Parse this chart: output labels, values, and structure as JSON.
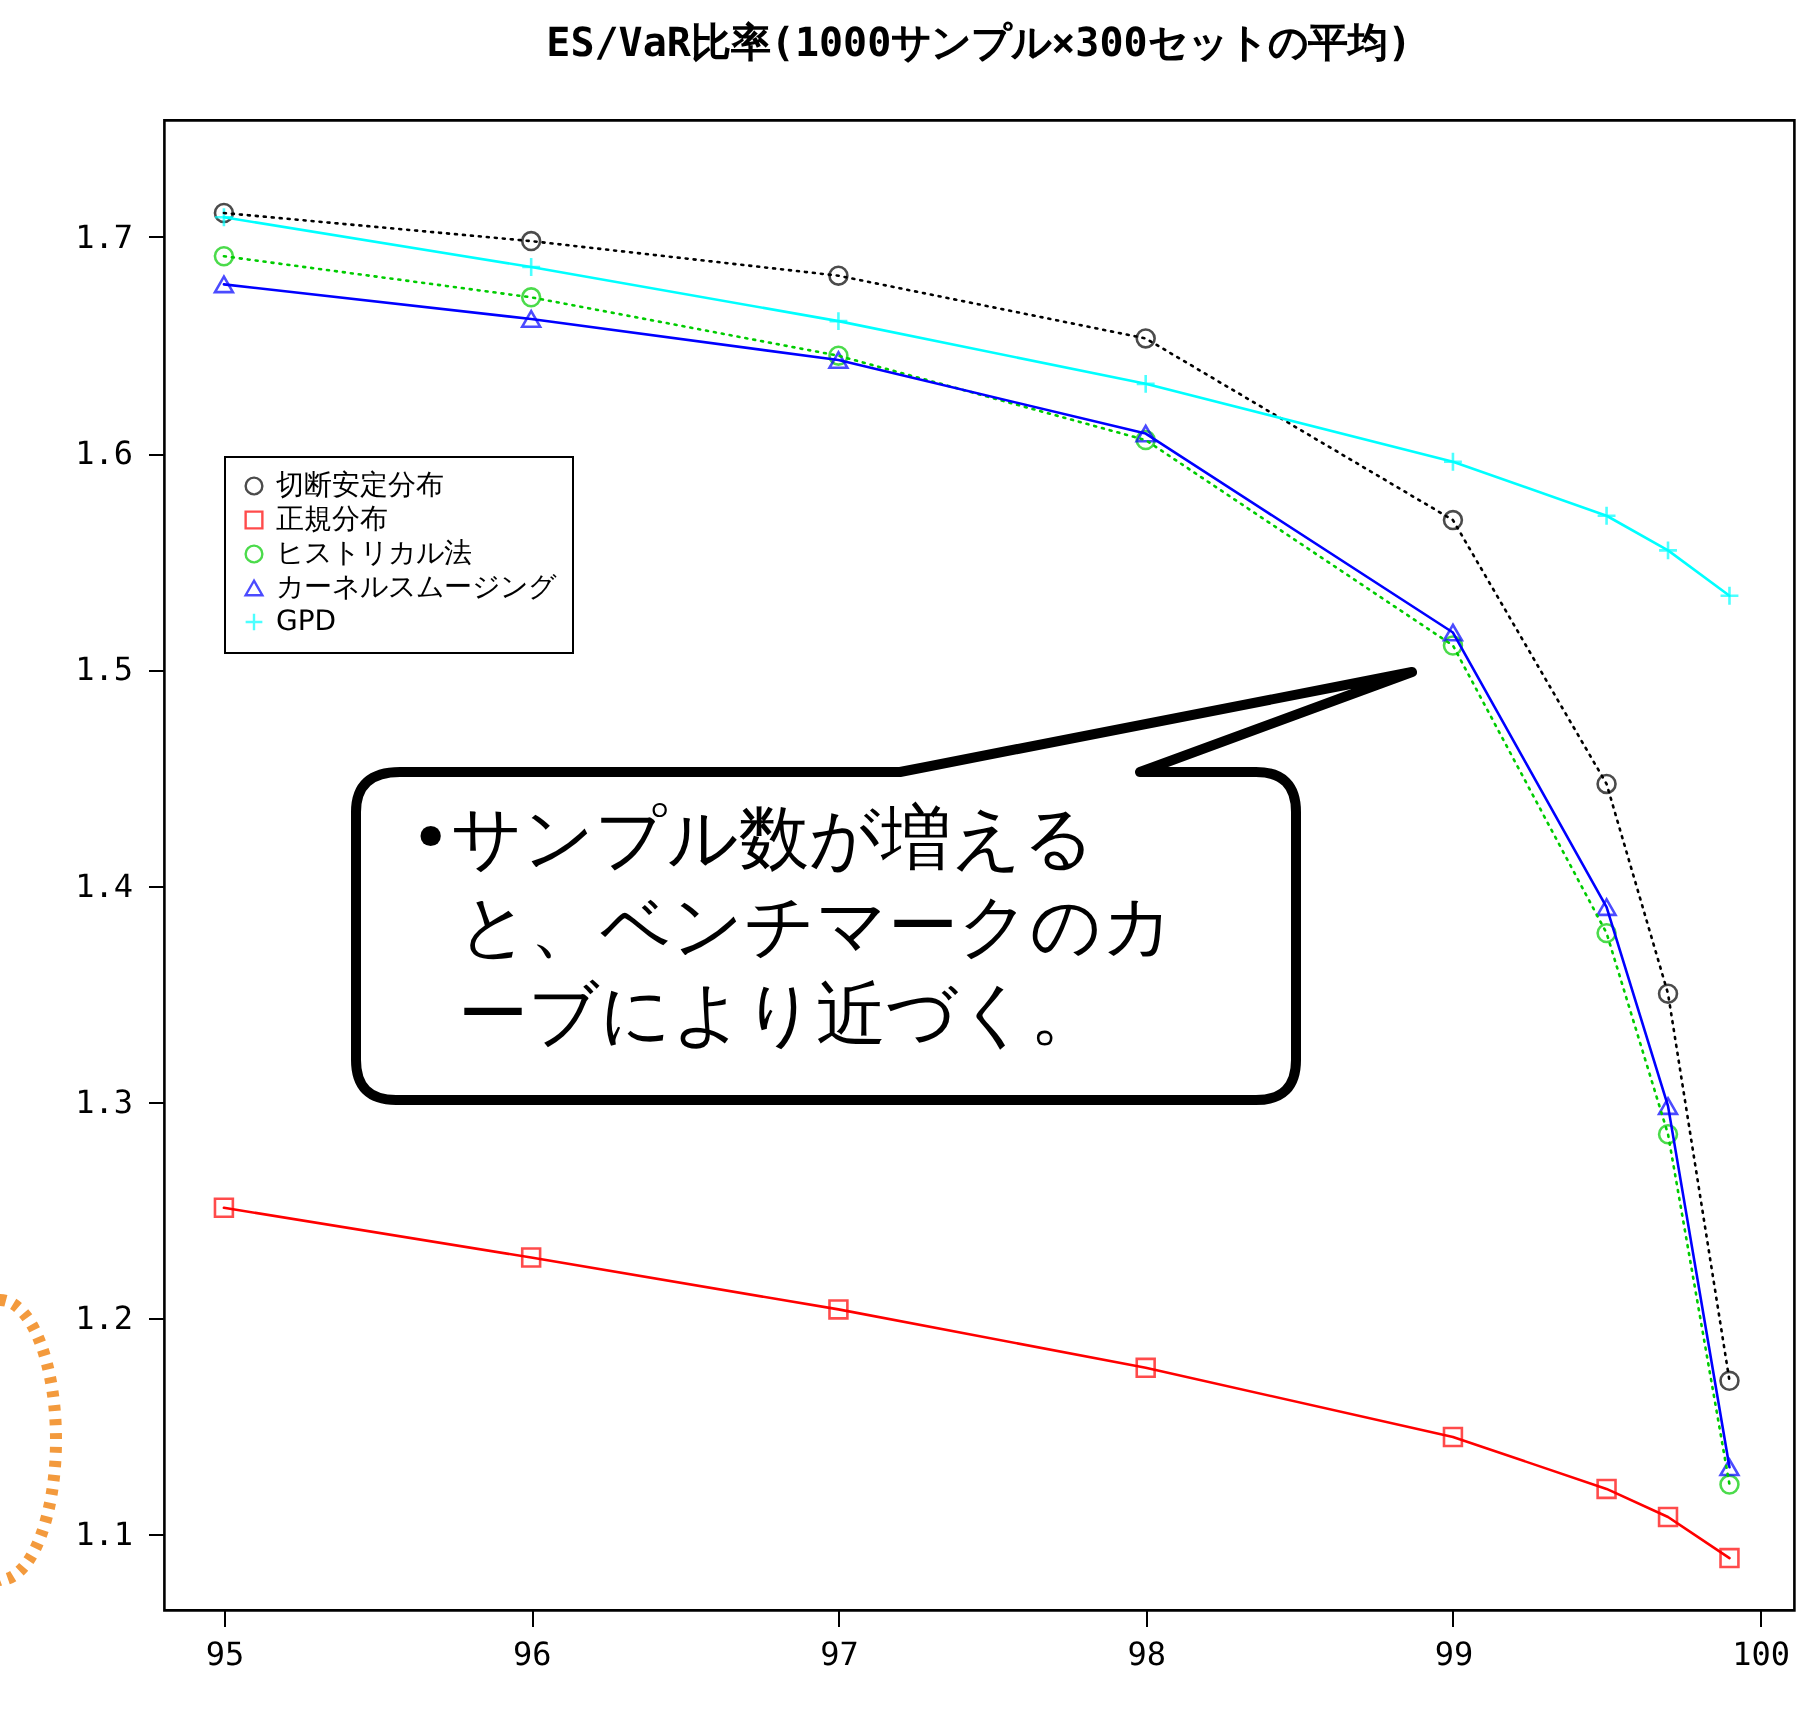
{
  "chart_data": {
    "type": "line",
    "title": "ES/VaR比率(1000サンプル×300セットの平均)",
    "x": [
      95,
      96,
      97,
      98,
      99,
      99.5,
      99.7,
      99.9
    ],
    "series": [
      {
        "name": "切断安定分布",
        "color": "#000000",
        "marker": "circle",
        "line_style": "dotted",
        "values": [
          1.711,
          1.698,
          1.682,
          1.653,
          1.569,
          1.447,
          1.35,
          1.171
        ]
      },
      {
        "name": "正規分布",
        "color": "#ff0000",
        "marker": "square",
        "line_style": "solid",
        "values": [
          1.251,
          1.228,
          1.204,
          1.177,
          1.145,
          1.121,
          1.108,
          1.089
        ]
      },
      {
        "name": "ヒストリカル法",
        "color": "#00cc00",
        "marker": "circle",
        "line_style": "dotted",
        "values": [
          1.691,
          1.672,
          1.645,
          1.606,
          1.511,
          1.378,
          1.285,
          1.123
        ]
      },
      {
        "name": "カーネルスムージング",
        "color": "#0000ff",
        "marker": "triangle",
        "line_style": "solid",
        "values": [
          1.678,
          1.662,
          1.643,
          1.609,
          1.517,
          1.39,
          1.298,
          1.131
        ]
      },
      {
        "name": "GPD",
        "color": "#00ffff",
        "marker": "cross",
        "line_style": "solid",
        "values": [
          1.709,
          1.686,
          1.661,
          1.632,
          1.596,
          1.571,
          1.555,
          1.534
        ]
      }
    ],
    "xlim": [
      94.805,
      100.11
    ],
    "xticks": [
      95,
      96,
      97,
      98,
      99,
      100
    ],
    "ylim": [
      1.065,
      1.754
    ],
    "yticks": [
      1.1,
      1.2,
      1.3,
      1.4,
      1.5,
      1.6,
      1.7
    ],
    "grid": false,
    "legend": "top left",
    "annotations": [
      "•サンプル数が増えると、ベンチマークのカーブにより近づく。"
    ]
  }
}
